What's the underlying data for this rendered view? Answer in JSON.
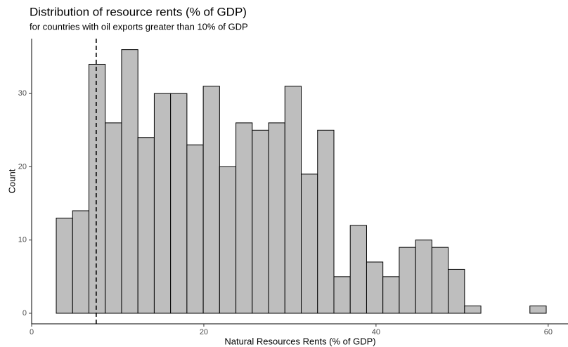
{
  "chart_data": {
    "type": "histogram",
    "title": "Distribution of resource rents (% of GDP)",
    "subtitle": "for countries with oil exports greater than 10% of GDP",
    "x_label": "Natural Resources Rents (% of GDP)",
    "y_label": "Count",
    "bins": [
      2.86,
      4.757,
      6.654,
      8.551,
      10.448,
      12.345,
      14.242,
      16.139,
      18.036,
      19.933,
      21.83,
      23.727,
      25.624,
      27.521,
      29.418,
      31.315,
      33.212,
      35.109,
      37.006,
      38.903,
      40.8,
      42.697,
      44.594,
      46.491,
      48.388,
      50.285,
      52.182,
      54.079,
      55.976,
      57.873,
      59.77
    ],
    "values": [
      13,
      14,
      34,
      26,
      36,
      24,
      30,
      30,
      23,
      31,
      20,
      26,
      25,
      26,
      31,
      19,
      25,
      5,
      12,
      7,
      5,
      9,
      10,
      9,
      6,
      1,
      0,
      0,
      0,
      1
    ],
    "color": "#bebebe",
    "vline": 7.5,
    "xlim": [
      0,
      62.3
    ],
    "xticks": [
      0,
      20,
      40,
      60
    ],
    "ylim": [
      -1.44,
      37.5
    ],
    "yticks": [
      0,
      10,
      20,
      30
    ]
  }
}
